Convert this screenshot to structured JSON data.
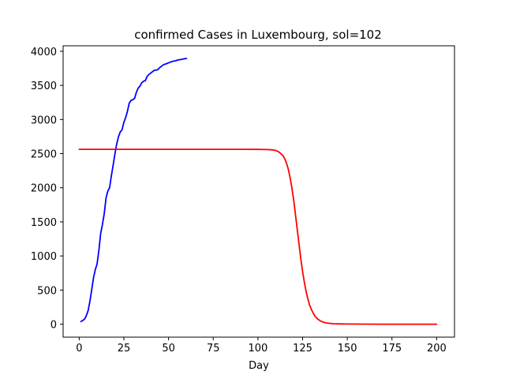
{
  "chart_data": {
    "type": "line",
    "title": "confirmed Cases in Luxembourg, sol=102",
    "xlabel": "Day",
    "ylabel": "",
    "xlim": [
      -9,
      210
    ],
    "ylim": [
      -190,
      4080
    ],
    "xticks": [
      0,
      25,
      50,
      75,
      100,
      125,
      150,
      175,
      200
    ],
    "yticks": [
      0,
      500,
      1000,
      1500,
      2000,
      2500,
      3000,
      3500,
      4000
    ],
    "grid": false,
    "legend": "none",
    "series": [
      {
        "color": "#0000ff",
        "x": [
          1,
          2,
          3,
          4,
          5,
          6,
          7,
          8,
          9,
          10,
          11,
          12,
          13,
          14,
          15,
          16,
          17,
          18,
          19,
          20,
          21,
          22,
          23,
          24,
          25,
          26,
          27,
          28,
          29,
          30,
          31,
          32,
          33,
          34,
          35,
          36,
          37,
          38,
          39,
          40,
          41,
          42,
          43,
          44,
          45,
          46,
          47,
          48,
          49,
          50,
          51,
          52,
          53,
          54,
          55,
          56,
          57,
          58,
          59,
          60
        ],
        "y": [
          38,
          55,
          75,
          125,
          200,
          340,
          500,
          680,
          800,
          880,
          1080,
          1330,
          1460,
          1620,
          1850,
          1950,
          2000,
          2180,
          2330,
          2500,
          2640,
          2750,
          2820,
          2850,
          2960,
          3030,
          3120,
          3240,
          3280,
          3290,
          3310,
          3400,
          3460,
          3490,
          3540,
          3560,
          3570,
          3630,
          3660,
          3680,
          3700,
          3720,
          3725,
          3730,
          3760,
          3780,
          3800,
          3810,
          3820,
          3830,
          3840,
          3850,
          3855,
          3860,
          3870,
          3875,
          3880,
          3885,
          3890,
          3895
        ]
      },
      {
        "color": "#ff0000",
        "x": [
          0,
          10,
          20,
          30,
          40,
          50,
          60,
          70,
          80,
          90,
          100,
          105,
          108,
          110,
          112,
          114,
          115,
          116,
          117,
          118,
          119,
          120,
          121,
          122,
          123,
          124,
          125,
          126,
          127,
          128,
          129,
          130,
          131,
          132,
          133,
          134,
          135,
          136,
          137,
          138,
          140,
          142,
          145,
          150,
          160,
          170,
          180,
          190,
          200
        ],
        "y": [
          2563,
          2563,
          2563,
          2563,
          2563,
          2563,
          2563,
          2563,
          2563,
          2563,
          2562,
          2560,
          2555,
          2545,
          2520,
          2470,
          2425,
          2360,
          2270,
          2150,
          2000,
          1820,
          1610,
          1390,
          1170,
          960,
          770,
          610,
          475,
          365,
          278,
          210,
          157,
          117,
          87,
          65,
          48,
          36,
          27,
          20,
          12,
          7,
          4,
          2,
          1,
          0,
          0,
          0,
          0
        ]
      }
    ]
  }
}
